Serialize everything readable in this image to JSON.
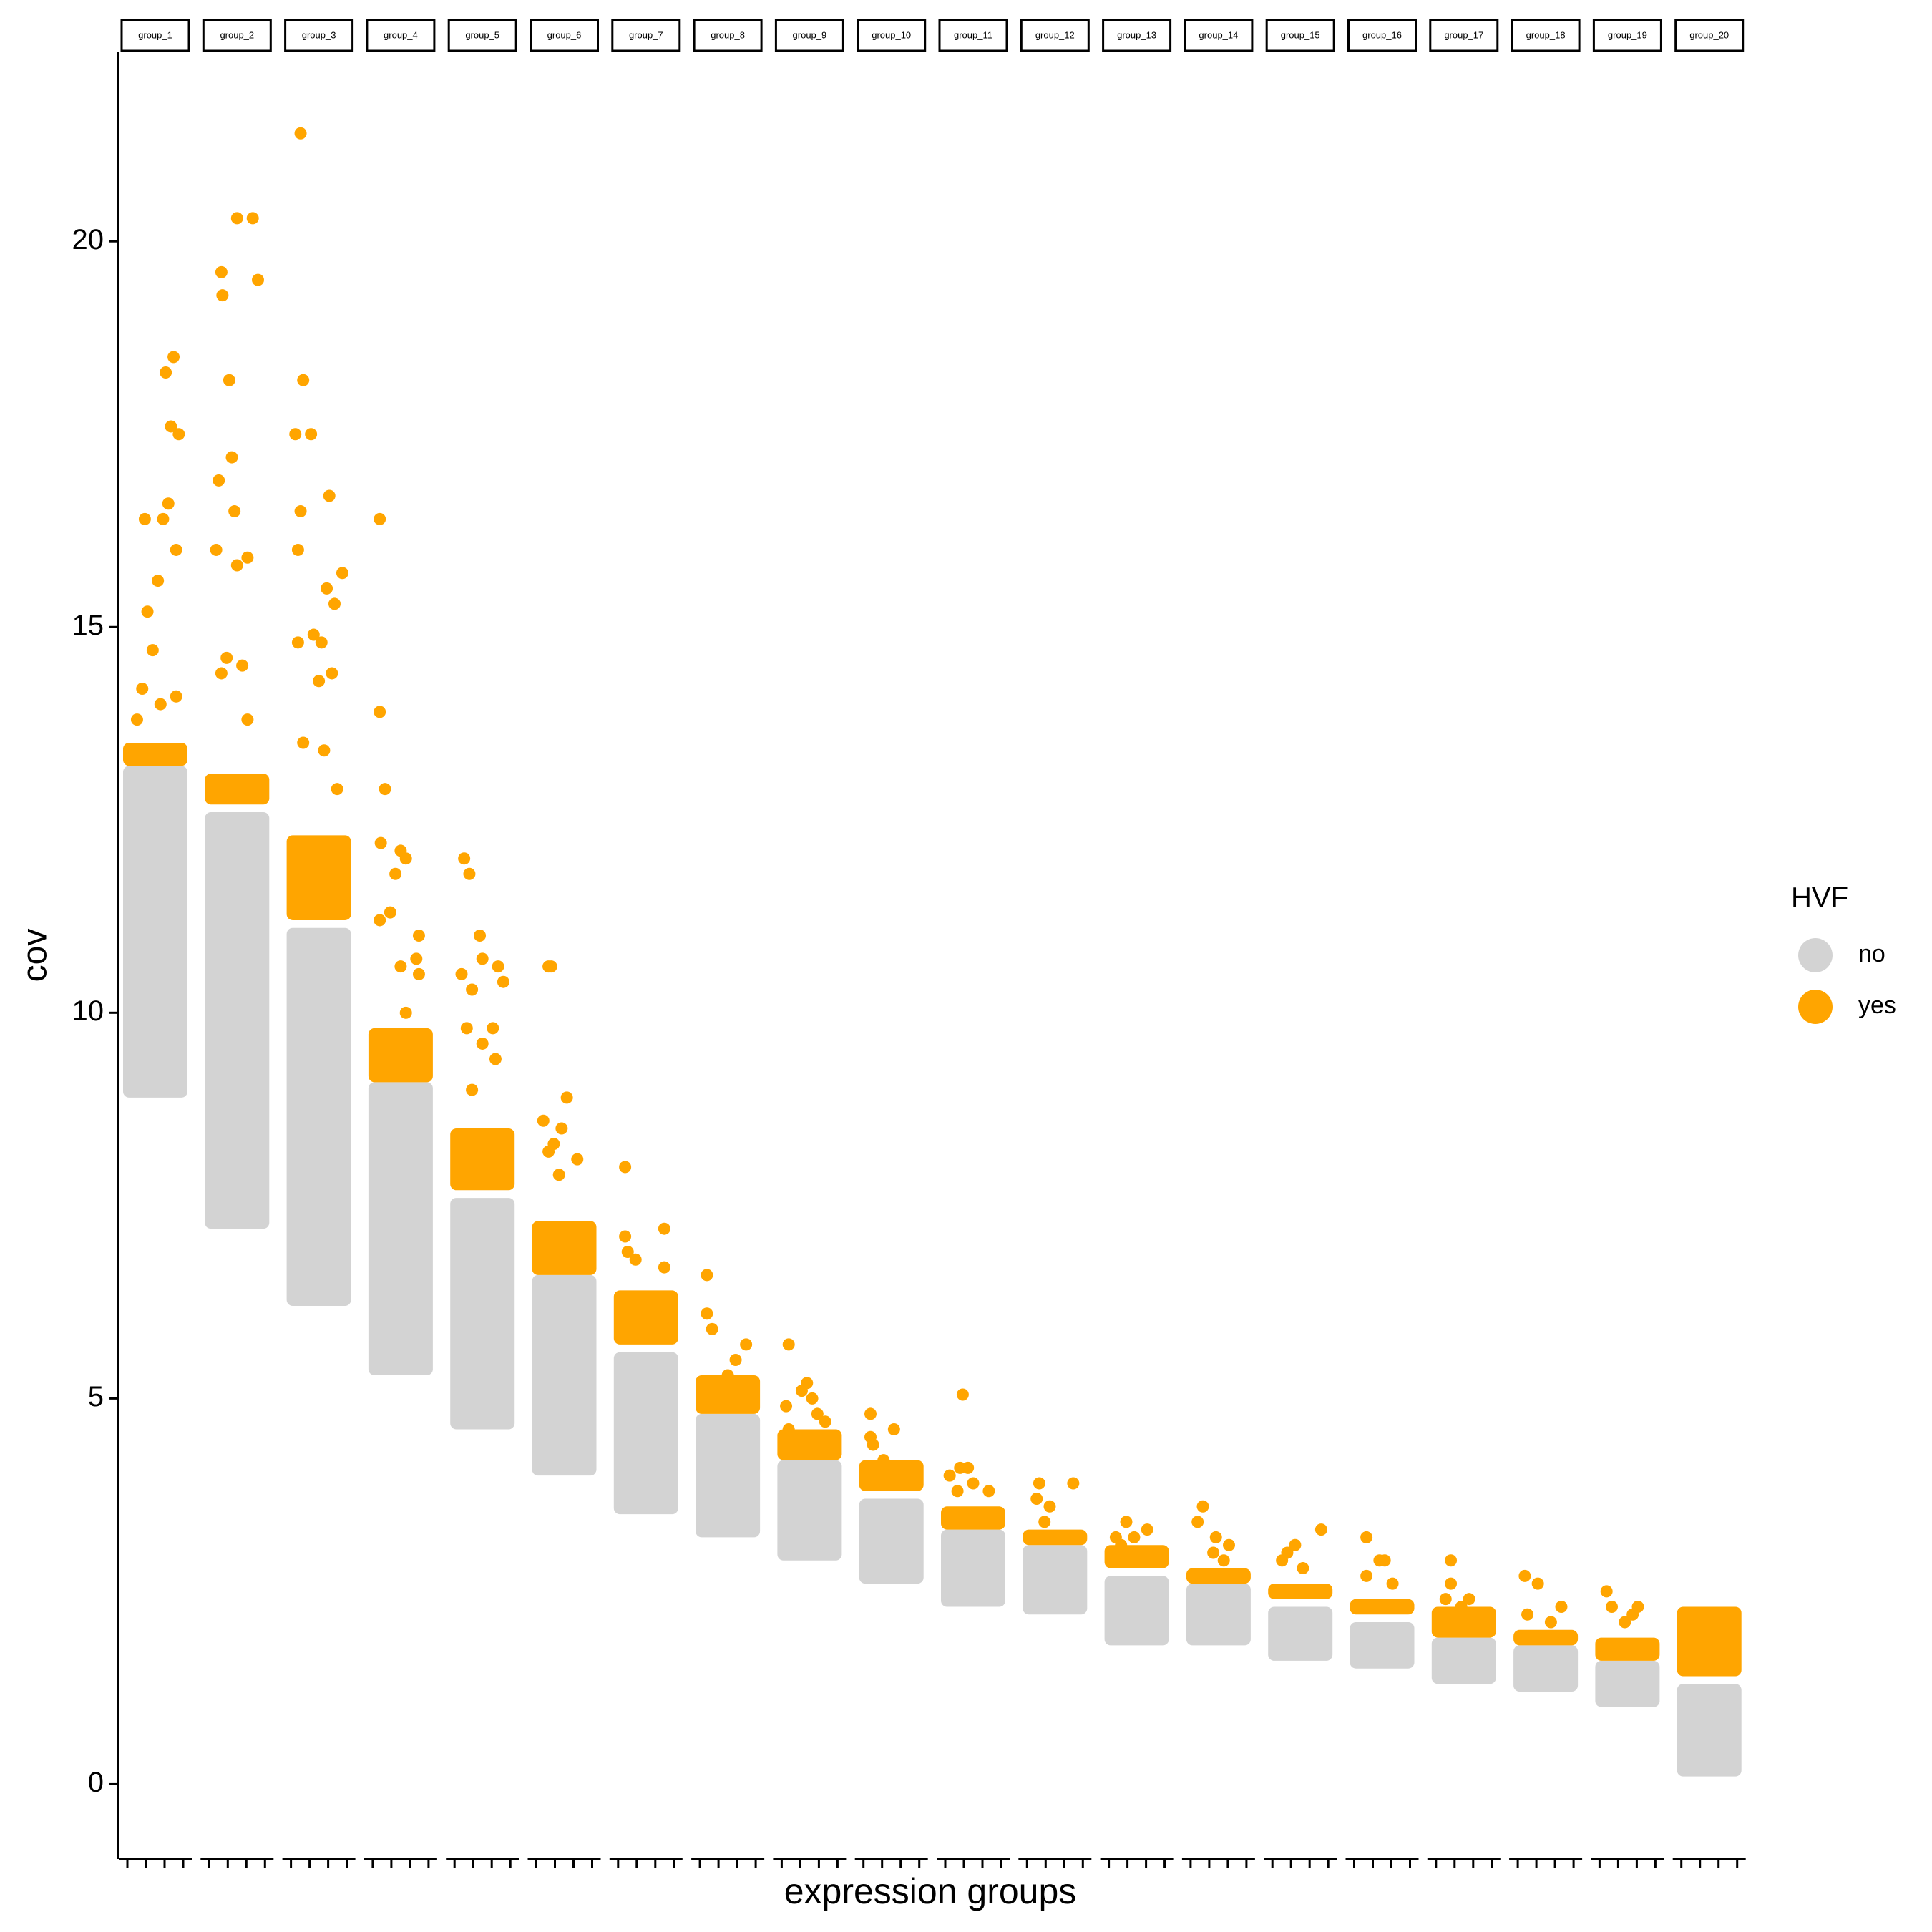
{
  "chart_data": {
    "type": "facet_scatter",
    "y_label": "cov",
    "x_label": "expression groups",
    "legend_title": "HVF",
    "legend_position": "right",
    "series": [
      {
        "name": "no",
        "color": "#d3d3d3"
      },
      {
        "name": "yes",
        "color": "#ffa500"
      }
    ],
    "ylim": [
      -0.97,
      22.46
    ],
    "yticks": [
      0,
      5,
      10,
      15,
      20
    ],
    "facets": [
      {
        "label": "group_1",
        "no": [
          8.9,
          13.2
        ],
        "yes": [
          13.2,
          13.5
        ],
        "points": [
          [
            0.15,
            13.8
          ],
          [
            0.25,
            14.2
          ],
          [
            0.45,
            14.7
          ],
          [
            0.35,
            15.2
          ],
          [
            0.55,
            15.6
          ],
          [
            0.65,
            16.4
          ],
          [
            0.75,
            16.6
          ],
          [
            0.85,
            18.5
          ],
          [
            0.7,
            18.3
          ],
          [
            0.8,
            17.6
          ],
          [
            0.95,
            17.5
          ],
          [
            0.3,
            16.4
          ],
          [
            0.9,
            16
          ],
          [
            0.6,
            14
          ],
          [
            0.9,
            14.1
          ]
        ]
      },
      {
        "label": "group_2",
        "no": [
          7.2,
          12.6
        ],
        "yes": [
          12.7,
          13.1
        ],
        "points": [
          [
            0.15,
            16.9
          ],
          [
            0.2,
            19.6
          ],
          [
            0.22,
            19.3
          ],
          [
            0.35,
            18.2
          ],
          [
            0.4,
            17.2
          ],
          [
            0.5,
            20.3
          ],
          [
            0.8,
            20.3
          ],
          [
            0.9,
            19.5
          ],
          [
            0.45,
            16.5
          ],
          [
            0.7,
            15.9
          ],
          [
            0.5,
            15.8
          ],
          [
            0.6,
            14.5
          ],
          [
            0.3,
            14.6
          ],
          [
            0.1,
            16
          ],
          [
            0.2,
            14.4
          ],
          [
            0.7,
            13.8
          ]
        ]
      },
      {
        "label": "group_3",
        "no": [
          6.2,
          11.1
        ],
        "yes": [
          11.2,
          12.3
        ],
        "points": [
          [
            0.15,
            21.4
          ],
          [
            0.2,
            18.2
          ],
          [
            0.35,
            17.5
          ],
          [
            0.05,
            17.5
          ],
          [
            0.15,
            16.5
          ],
          [
            0.7,
            16.7
          ],
          [
            0.1,
            16
          ],
          [
            0.65,
            15.5
          ],
          [
            0.8,
            15.3
          ],
          [
            0.95,
            15.7
          ],
          [
            0.4,
            14.9
          ],
          [
            0.75,
            14.4
          ],
          [
            0.55,
            14.8
          ],
          [
            0.1,
            14.8
          ],
          [
            0.5,
            14.3
          ],
          [
            0.2,
            13.5
          ],
          [
            0.85,
            12.9
          ],
          [
            0.6,
            13.4
          ]
        ]
      },
      {
        "label": "group_4",
        "no": [
          5.3,
          9.1
        ],
        "yes": [
          9.1,
          9.8
        ],
        "points": [
          [
            0.1,
            16.4
          ],
          [
            0.1,
            13.9
          ],
          [
            0.2,
            12.9
          ],
          [
            0.12,
            12.2
          ],
          [
            0.5,
            12.1
          ],
          [
            0.6,
            12
          ],
          [
            0.4,
            11.8
          ],
          [
            0.3,
            11.3
          ],
          [
            0.85,
            11
          ],
          [
            0.8,
            10.7
          ],
          [
            0.85,
            10.5
          ],
          [
            0.5,
            10.6
          ],
          [
            0.1,
            11.2
          ],
          [
            0.6,
            10
          ]
        ]
      },
      {
        "label": "group_5",
        "no": [
          4.6,
          7.6
        ],
        "yes": [
          7.7,
          8.5
        ],
        "points": [
          [
            0.15,
            12
          ],
          [
            0.25,
            11.8
          ],
          [
            0.1,
            10.5
          ],
          [
            0.45,
            11
          ],
          [
            0.5,
            10.7
          ],
          [
            0.8,
            10.6
          ],
          [
            0.9,
            10.4
          ],
          [
            0.3,
            10.3
          ],
          [
            0.7,
            9.8
          ],
          [
            0.2,
            9.8
          ],
          [
            0.5,
            9.6
          ],
          [
            0.75,
            9.4
          ],
          [
            0.3,
            9
          ]
        ]
      },
      {
        "label": "group_6",
        "no": [
          4,
          6.6
        ],
        "yes": [
          6.6,
          7.3
        ],
        "points": [
          [
            0.1,
            8.6
          ],
          [
            0.2,
            8.2
          ],
          [
            0.45,
            8.5
          ],
          [
            0.55,
            8.9
          ],
          [
            0.75,
            8.1
          ],
          [
            0.3,
            8.3
          ],
          [
            0.2,
            10.6
          ],
          [
            0.25,
            10.6
          ],
          [
            0.4,
            7.9
          ]
        ]
      },
      {
        "label": "group_7",
        "no": [
          3.5,
          5.6
        ],
        "yes": [
          5.7,
          6.4
        ],
        "points": [
          [
            0.1,
            8
          ],
          [
            0.1,
            7.1
          ],
          [
            0.85,
            7.2
          ],
          [
            0.3,
            6.8
          ],
          [
            0.85,
            6.7
          ],
          [
            0.9,
            6.1
          ],
          [
            0.95,
            5.9
          ],
          [
            0.15,
            6.9
          ]
        ]
      },
      {
        "label": "group_8",
        "no": [
          3.2,
          4.8
        ],
        "yes": [
          4.8,
          5.3
        ],
        "points": [
          [
            0.1,
            6.6
          ],
          [
            0.1,
            6.1
          ],
          [
            0.2,
            5.9
          ],
          [
            0.85,
            5.7
          ],
          [
            0.65,
            5.5
          ],
          [
            0.5,
            5.3
          ],
          [
            0.7,
            5.2
          ]
        ]
      },
      {
        "label": "group_9",
        "no": [
          2.9,
          4.2
        ],
        "yes": [
          4.2,
          4.6
        ],
        "points": [
          [
            0.1,
            5.7
          ],
          [
            0.05,
            4.9
          ],
          [
            0.35,
            5.1
          ],
          [
            0.45,
            5.2
          ],
          [
            0.55,
            5
          ],
          [
            0.65,
            4.8
          ],
          [
            0.8,
            4.7
          ],
          [
            0.1,
            4.6
          ]
        ]
      },
      {
        "label": "group_10",
        "no": [
          2.6,
          3.7
        ],
        "yes": [
          3.8,
          4.2
        ],
        "points": [
          [
            0.1,
            4.8
          ],
          [
            0.1,
            4.5
          ],
          [
            0.55,
            4.6
          ],
          [
            0.15,
            4.4
          ],
          [
            0.35,
            4.2
          ]
        ]
      },
      {
        "label": "group_11",
        "no": [
          2.3,
          3.3
        ],
        "yes": [
          3.3,
          3.6
        ],
        "points": [
          [
            0.3,
            5.05
          ],
          [
            0.05,
            4
          ],
          [
            0.25,
            4.1
          ],
          [
            0.4,
            4.1
          ],
          [
            0.5,
            3.9
          ],
          [
            0.8,
            3.8
          ],
          [
            0.2,
            3.8
          ]
        ]
      },
      {
        "label": "group_12",
        "no": [
          2.2,
          3.1
        ],
        "yes": [
          3.1,
          3.3
        ],
        "points": [
          [
            0.2,
            3.9
          ],
          [
            0.15,
            3.7
          ],
          [
            0.4,
            3.6
          ],
          [
            0.85,
            3.9
          ],
          [
            0.3,
            3.4
          ]
        ]
      },
      {
        "label": "group_13",
        "no": [
          1.8,
          2.7
        ],
        "yes": [
          2.8,
          3.1
        ],
        "points": [
          [
            0.3,
            3.4
          ],
          [
            0.45,
            3.2
          ],
          [
            0.7,
            3.3
          ],
          [
            0.1,
            3.2
          ],
          [
            0.2,
            3.1
          ]
        ]
      },
      {
        "label": "group_14",
        "no": [
          1.8,
          2.6
        ],
        "yes": [
          2.6,
          2.8
        ],
        "points": [
          [
            0.2,
            3.6
          ],
          [
            0.1,
            3.4
          ],
          [
            0.45,
            3.2
          ],
          [
            0.4,
            3
          ],
          [
            0.7,
            3.1
          ],
          [
            0.6,
            2.9
          ]
        ]
      },
      {
        "label": "group_15",
        "no": [
          1.6,
          2.3
        ],
        "yes": [
          2.4,
          2.6
        ],
        "points": [
          [
            0.4,
            3.1
          ],
          [
            0.9,
            3.3
          ],
          [
            0.25,
            3
          ],
          [
            0.15,
            2.9
          ],
          [
            0.55,
            2.8
          ]
        ]
      },
      {
        "label": "group_16",
        "no": [
          1.5,
          2.1
        ],
        "yes": [
          2.2,
          2.4
        ],
        "points": [
          [
            0.2,
            3.2
          ],
          [
            0.45,
            2.9
          ],
          [
            0.55,
            2.9
          ],
          [
            0.2,
            2.7
          ],
          [
            0.7,
            2.6
          ]
        ]
      },
      {
        "label": "group_17",
        "no": [
          1.3,
          1.9
        ],
        "yes": [
          1.9,
          2.3
        ],
        "points": [
          [
            0.25,
            2.9
          ],
          [
            0.25,
            2.6
          ],
          [
            0.15,
            2.4
          ],
          [
            0.6,
            2.4
          ],
          [
            0.45,
            2.3
          ]
        ]
      },
      {
        "label": "group_18",
        "no": [
          1.2,
          1.8
        ],
        "yes": [
          1.8,
          2.0
        ],
        "points": [
          [
            0.1,
            2.7
          ],
          [
            0.35,
            2.6
          ],
          [
            0.15,
            2.2
          ],
          [
            0.8,
            2.3
          ],
          [
            0.6,
            2.1
          ]
        ]
      },
      {
        "label": "group_19",
        "no": [
          1,
          1.6
        ],
        "yes": [
          1.6,
          1.9
        ],
        "points": [
          [
            0.1,
            2.5
          ],
          [
            0.2,
            2.3
          ],
          [
            0.6,
            2.2
          ],
          [
            0.7,
            2.3
          ],
          [
            0.45,
            2.1
          ]
        ]
      },
      {
        "label": "group_20",
        "no": [
          0.1,
          1.3
        ],
        "yes": [
          1.4,
          2.3
        ],
        "points": [
          [
            0.05,
            2.2
          ],
          [
            0.08,
            1.9
          ]
        ]
      }
    ]
  }
}
